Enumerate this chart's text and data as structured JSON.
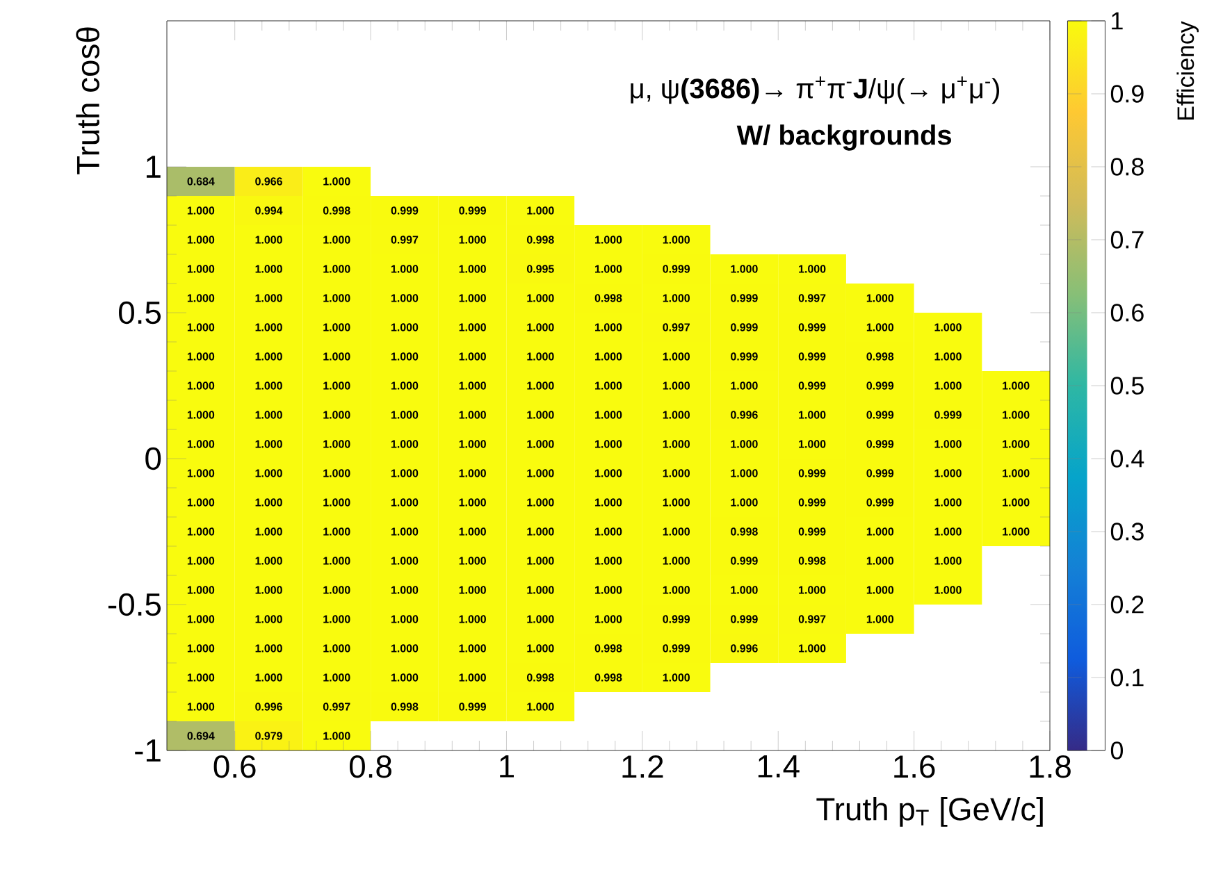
{
  "chart_data": {
    "type": "heatmap",
    "title": "μ, ψ**(3686)**→  π$^{+}$π$^{-}$**J**/ψ(→  μ$^{+}$μ$^{-}$)",
    "subtitle": "W/ backgrounds",
    "xlabel": "Truth p$_{T}$ [GeV/c]",
    "ylabel": "Truth cosθ",
    "clabel": "Efficiency",
    "x": [
      0.55,
      0.65,
      0.75,
      0.85,
      0.95,
      1.05,
      1.15,
      1.25,
      1.35,
      1.45,
      1.55,
      1.65,
      1.75
    ],
    "y": [
      0.95,
      0.85,
      0.75,
      0.65,
      0.55,
      0.45,
      0.35,
      0.25,
      0.15,
      0.05,
      -0.05,
      -0.15,
      -0.25,
      -0.35,
      -0.45,
      -0.55,
      -0.65,
      -0.75,
      -0.85,
      -0.95
    ],
    "xlim": [
      0.5,
      1.8
    ],
    "ylim": [
      -1,
      1.5
    ],
    "xticks": [
      0.6,
      0.8,
      1,
      1.2,
      1.4,
      1.6,
      1.8
    ],
    "yticks": [
      -1,
      -0.5,
      0,
      0.5,
      1
    ],
    "clim": [
      0,
      1
    ],
    "cticks": [
      0,
      0.1,
      0.2,
      0.3,
      0.4,
      0.5,
      0.6,
      0.7,
      0.8,
      0.9,
      1
    ],
    "cells": [
      [
        0.684,
        0.966,
        1,
        null,
        null,
        null,
        null,
        null,
        null,
        null,
        null,
        null,
        null
      ],
      [
        1,
        0.994,
        0.998,
        0.999,
        0.999,
        1,
        null,
        null,
        null,
        null,
        null,
        null,
        null
      ],
      [
        1,
        1,
        1,
        0.997,
        1,
        0.998,
        1,
        1,
        null,
        null,
        null,
        null,
        null
      ],
      [
        1,
        1,
        1,
        1,
        1,
        0.995,
        1,
        0.999,
        1,
        1,
        null,
        null,
        null
      ],
      [
        1,
        1,
        1,
        1,
        1,
        1,
        0.998,
        1,
        0.999,
        0.997,
        1,
        null,
        null
      ],
      [
        1,
        1,
        1,
        1,
        1,
        1,
        1,
        0.997,
        0.999,
        0.999,
        1,
        1,
        null
      ],
      [
        1,
        1,
        1,
        1,
        1,
        1,
        1,
        1,
        0.999,
        0.999,
        0.998,
        1,
        null
      ],
      [
        1,
        1,
        1,
        1,
        1,
        1,
        1,
        1,
        1,
        0.999,
        0.999,
        1,
        1
      ],
      [
        1,
        1,
        1,
        1,
        1,
        1,
        1,
        1,
        0.996,
        1,
        0.999,
        0.999,
        1
      ],
      [
        1,
        1,
        1,
        1,
        1,
        1,
        1,
        1,
        1,
        1,
        0.999,
        1,
        1
      ],
      [
        1,
        1,
        1,
        1,
        1,
        1,
        1,
        1,
        1,
        0.999,
        0.999,
        1,
        1
      ],
      [
        1,
        1,
        1,
        1,
        1,
        1,
        1,
        1,
        1,
        0.999,
        0.999,
        1,
        1
      ],
      [
        1,
        1,
        1,
        1,
        1,
        1,
        1,
        1,
        0.998,
        0.999,
        1,
        1,
        1
      ],
      [
        1,
        1,
        1,
        1,
        1,
        1,
        1,
        1,
        0.999,
        0.998,
        1,
        1,
        null
      ],
      [
        1,
        1,
        1,
        1,
        1,
        1,
        1,
        1,
        1,
        1,
        1,
        1,
        null
      ],
      [
        1,
        1,
        1,
        1,
        1,
        1,
        1,
        0.999,
        0.999,
        0.997,
        1,
        null,
        null
      ],
      [
        1,
        1,
        1,
        1,
        1,
        1,
        0.998,
        0.999,
        0.996,
        1,
        null,
        null,
        null
      ],
      [
        1,
        1,
        1,
        1,
        1,
        0.998,
        0.998,
        1,
        null,
        null,
        null,
        null,
        null
      ],
      [
        1,
        0.996,
        0.997,
        0.998,
        0.999,
        1,
        null,
        null,
        null,
        null,
        null,
        null,
        null
      ],
      [
        0.694,
        0.979,
        1,
        null,
        null,
        null,
        null,
        null,
        null,
        null,
        null,
        null,
        null
      ]
    ],
    "cell_labels": [
      [
        "0.684",
        "0.966",
        "1.000",
        null,
        null,
        null,
        null,
        null,
        null,
        null,
        null,
        null,
        null
      ],
      [
        "1.000",
        "0.994",
        "0.998",
        "0.999",
        "0.999",
        "1.000",
        null,
        null,
        null,
        null,
        null,
        null,
        null
      ],
      [
        "1.000",
        "1.000",
        "1.000",
        "0.997",
        "1.000",
        "0.998",
        "1.000",
        "1.000",
        null,
        null,
        null,
        null,
        null
      ],
      [
        "1.000",
        "1.000",
        "1.000",
        "1.000",
        "1.000",
        "0.995",
        "1.000",
        "0.999",
        "1.000",
        "1.000",
        null,
        null,
        null
      ],
      [
        "1.000",
        "1.000",
        "1.000",
        "1.000",
        "1.000",
        "1.000",
        "0.998",
        "1.000",
        "0.999",
        "0.997",
        "1.000",
        null,
        null
      ],
      [
        "1.000",
        "1.000",
        "1.000",
        "1.000",
        "1.000",
        "1.000",
        "1.000",
        "0.997",
        "0.999",
        "0.999",
        "1.000",
        "1.000",
        null
      ],
      [
        "1.000",
        "1.000",
        "1.000",
        "1.000",
        "1.000",
        "1.000",
        "1.000",
        "1.000",
        "0.999",
        "0.999",
        "0.998",
        "1.000",
        null
      ],
      [
        "1.000",
        "1.000",
        "1.000",
        "1.000",
        "1.000",
        "1.000",
        "1.000",
        "1.000",
        "1.000",
        "0.999",
        "0.999",
        "1.000",
        "1.000"
      ],
      [
        "1.000",
        "1.000",
        "1.000",
        "1.000",
        "1.000",
        "1.000",
        "1.000",
        "1.000",
        "0.996",
        "1.000",
        "0.999",
        "0.999",
        "1.000"
      ],
      [
        "1.000",
        "1.000",
        "1.000",
        "1.000",
        "1.000",
        "1.000",
        "1.000",
        "1.000",
        "1.000",
        "1.000",
        "0.999",
        "1.000",
        "1.000"
      ],
      [
        "1.000",
        "1.000",
        "1.000",
        "1.000",
        "1.000",
        "1.000",
        "1.000",
        "1.000",
        "1.000",
        "0.999",
        "0.999",
        "1.000",
        "1.000"
      ],
      [
        "1.000",
        "1.000",
        "1.000",
        "1.000",
        "1.000",
        "1.000",
        "1.000",
        "1.000",
        "1.000",
        "0.999",
        "0.999",
        "1.000",
        "1.000"
      ],
      [
        "1.000",
        "1.000",
        "1.000",
        "1.000",
        "1.000",
        "1.000",
        "1.000",
        "1.000",
        "0.998",
        "0.999",
        "1.000",
        "1.000",
        "1.000"
      ],
      [
        "1.000",
        "1.000",
        "1.000",
        "1.000",
        "1.000",
        "1.000",
        "1.000",
        "1.000",
        "0.999",
        "0.998",
        "1.000",
        "1.000",
        null
      ],
      [
        "1.000",
        "1.000",
        "1.000",
        "1.000",
        "1.000",
        "1.000",
        "1.000",
        "1.000",
        "1.000",
        "1.000",
        "1.000",
        "1.000",
        null
      ],
      [
        "1.000",
        "1.000",
        "1.000",
        "1.000",
        "1.000",
        "1.000",
        "1.000",
        "0.999",
        "0.999",
        "0.997",
        "1.000",
        null,
        null
      ],
      [
        "1.000",
        "1.000",
        "1.000",
        "1.000",
        "1.000",
        "1.000",
        "0.998",
        "0.999",
        "0.996",
        "1.000",
        null,
        null,
        null
      ],
      [
        "1.000",
        "1.000",
        "1.000",
        "1.000",
        "1.000",
        "0.998",
        "0.998",
        "1.000",
        null,
        null,
        null,
        null,
        null
      ],
      [
        "1.000",
        "0.996",
        "0.997",
        "0.998",
        "0.999",
        "1.000",
        null,
        null,
        null,
        null,
        null,
        null,
        null
      ],
      [
        "0.694",
        "0.979",
        "1.000",
        null,
        null,
        null,
        null,
        null,
        null,
        null,
        null,
        null,
        null
      ]
    ]
  }
}
